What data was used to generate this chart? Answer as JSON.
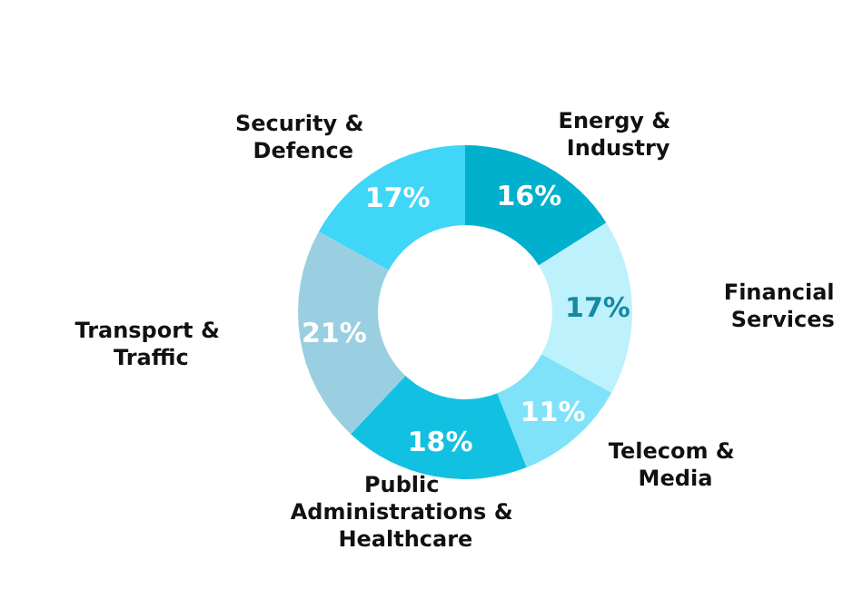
{
  "chart_data": {
    "type": "donut",
    "categories": [
      "Energy & Industry",
      "Financial Services",
      "Telecom & Media",
      "Public Administrations & Healthcare",
      "Transport & Traffic",
      "Security & Defence"
    ],
    "values": [
      16,
      17,
      11,
      18,
      21,
      17
    ],
    "value_labels": [
      "16%",
      "17%",
      "11%",
      "18%",
      "21%",
      "17%"
    ],
    "colors": [
      "#00b0cc",
      "#bdf1fc",
      "#80e2f8",
      "#12c1e1",
      "#99cfe0",
      "#3fd6f8"
    ],
    "legend": false
  }
}
